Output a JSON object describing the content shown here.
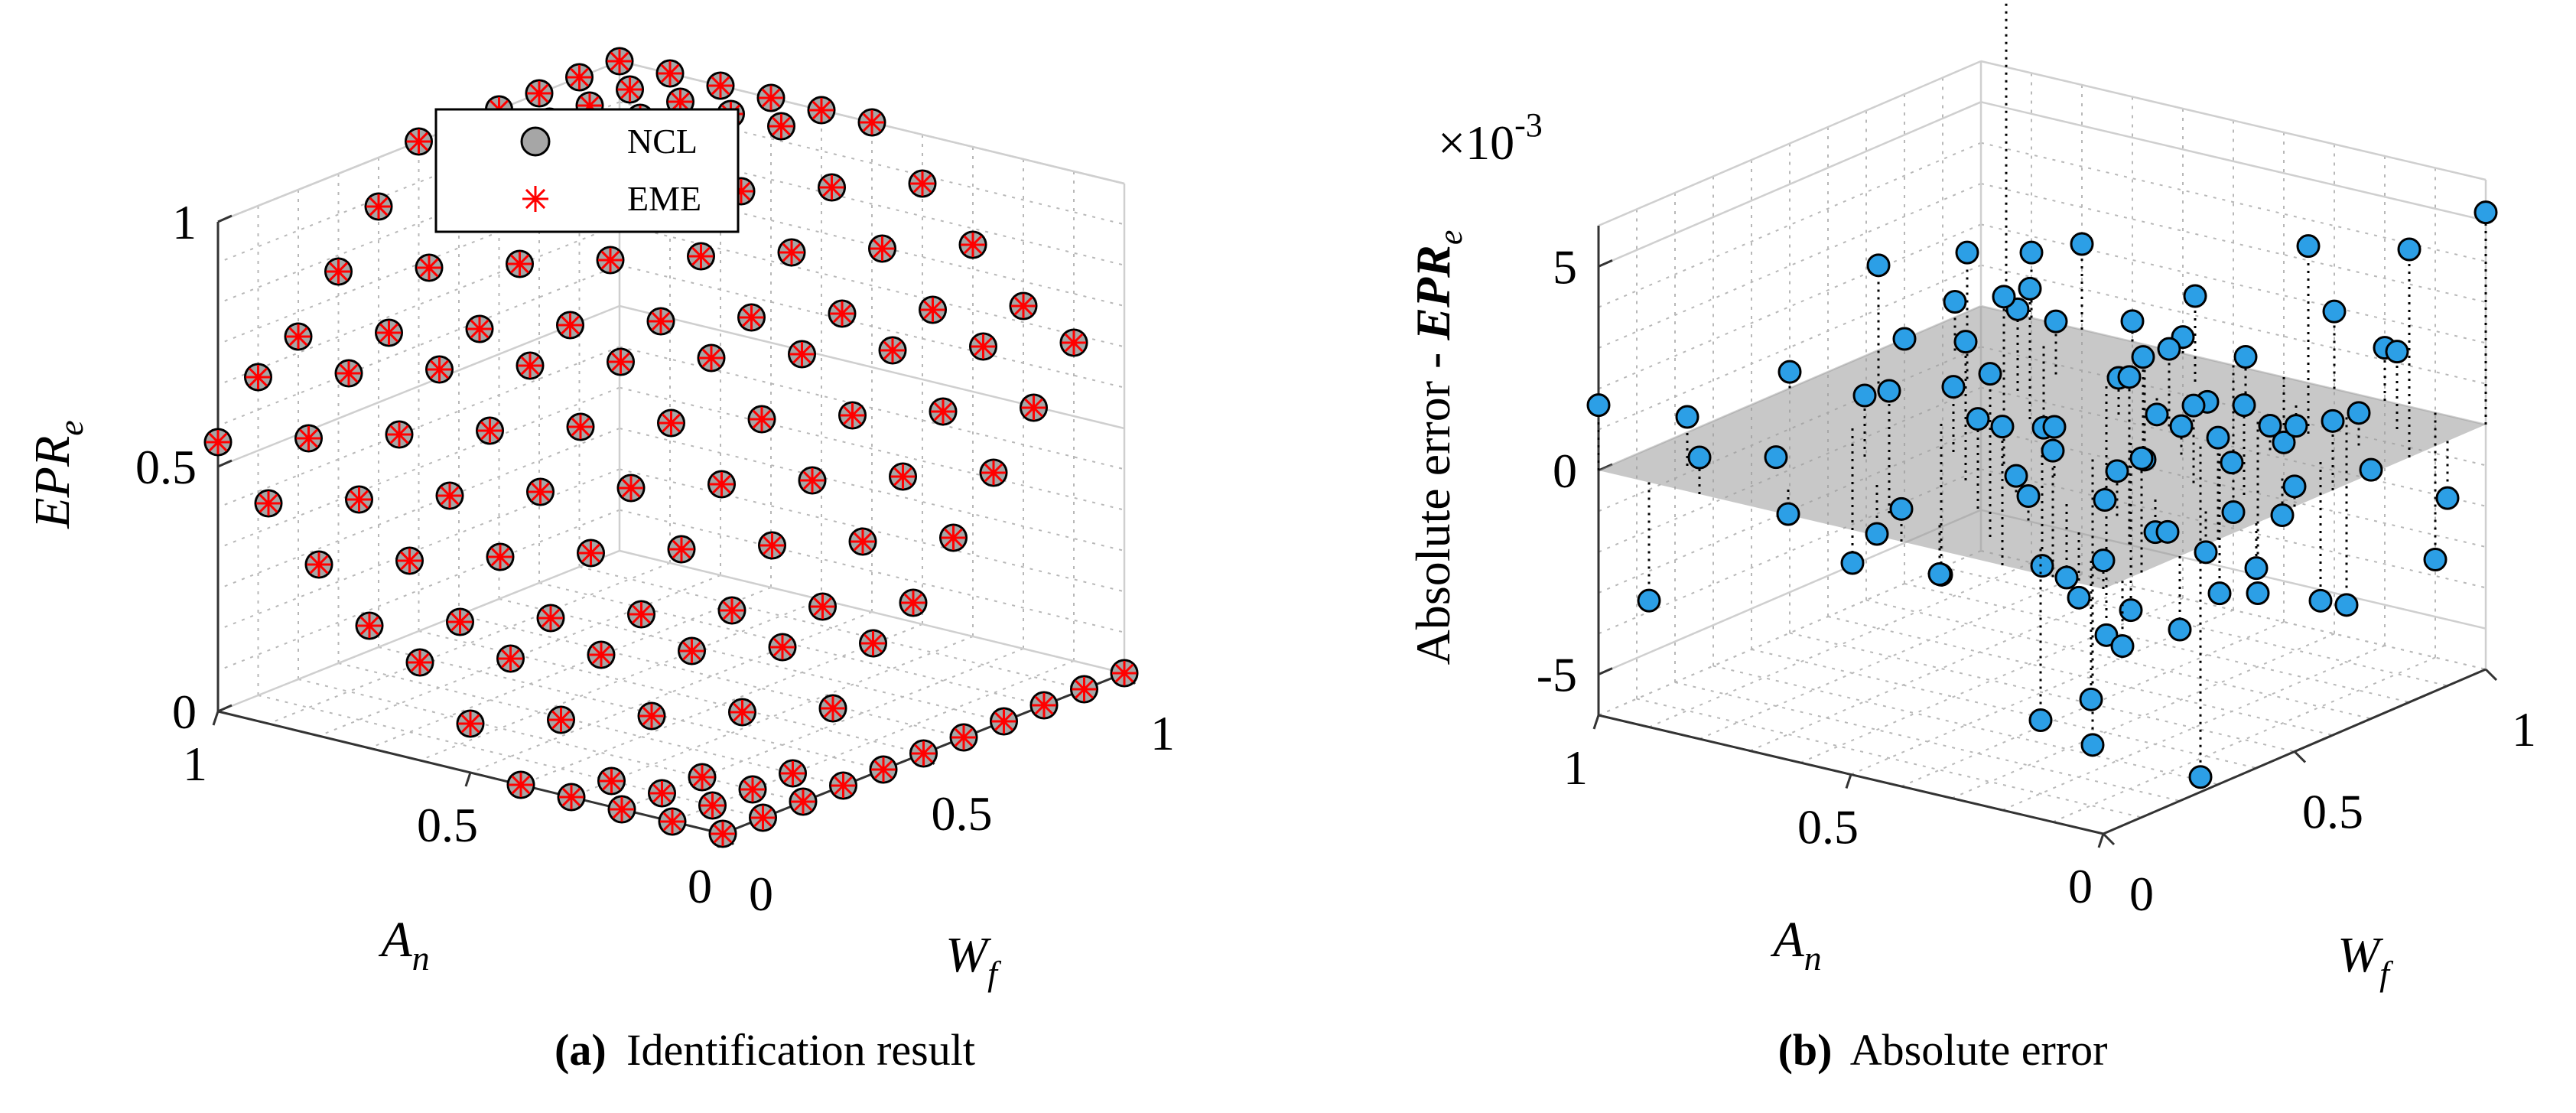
{
  "captions": {
    "a": {
      "label": "(a)",
      "text": "Identification result"
    },
    "b": {
      "label": "(b)",
      "text": "Absolute error"
    }
  },
  "colors": {
    "ncl_fill": "#a6a6a6",
    "eme": "#ff0000",
    "err_fill": "#2c9fe6",
    "plane": "#9a9a9a",
    "grid": "#b8b8b8",
    "axis": "#333333"
  },
  "chart_data": [
    {
      "type": "scatter3d",
      "xlabel_main": "W",
      "xlabel_sub": "f",
      "ylabel_main": "A",
      "ylabel_sub": "n",
      "zlabel_main": "EPR",
      "zlabel_sub": "e",
      "xlim": [
        0,
        1
      ],
      "ylim": [
        0,
        1
      ],
      "zlim": [
        0,
        1
      ],
      "xticks": [
        "0",
        "0.5",
        "1"
      ],
      "yticks": [
        "0",
        "0.5",
        "1"
      ],
      "zticks": [
        "0",
        "0.5",
        "1"
      ],
      "grid": true,
      "legend_position": "top",
      "series": [
        {
          "name": "NCL",
          "marker": "circle"
        },
        {
          "name": "EME",
          "marker": "asterisk"
        }
      ],
      "grid_points": 11,
      "surface_model": "EPR_e = min(1, max(0, 0.1*round((A_n + W_f)*10*0.6)/1))"
    },
    {
      "type": "scatter3d-stem",
      "xlabel_main": "W",
      "xlabel_sub": "f",
      "ylabel_main": "A",
      "ylabel_sub": "n",
      "zlabel_prefix": "Absolute error - ",
      "zlabel_main": "EPR",
      "zlabel_sub": "e",
      "exponent_label": "×10",
      "exponent_power": "-3",
      "xlim": [
        0,
        1
      ],
      "ylim": [
        0,
        1
      ],
      "zlim": [
        -6,
        6
      ],
      "xticks": [
        "0",
        "0.5",
        "1"
      ],
      "yticks": [
        "0",
        "0.5",
        "1"
      ],
      "zticks": [
        "-5",
        "0",
        "5"
      ],
      "grid": true,
      "points": [
        {
          "x": 0.0,
          "y": 1.0,
          "z": 1.6
        },
        {
          "x": 0.1,
          "y": 1.0,
          "z": -2.9
        },
        {
          "x": 0.1,
          "y": 0.9,
          "z": 1.2
        },
        {
          "x": 0.2,
          "y": 1.0,
          "z": 0.9
        },
        {
          "x": 0.2,
          "y": 0.8,
          "z": 0.1
        },
        {
          "x": 0.3,
          "y": 0.9,
          "z": -0.6
        },
        {
          "x": 0.3,
          "y": 0.7,
          "z": 1.5
        },
        {
          "x": 0.4,
          "y": 0.8,
          "z": -1.2
        },
        {
          "x": 0.4,
          "y": 0.6,
          "z": 1.6
        },
        {
          "x": 0.5,
          "y": 0.7,
          "z": 3.4
        },
        {
          "x": 0.5,
          "y": 0.5,
          "z": -2.9
        },
        {
          "x": 0.6,
          "y": 0.6,
          "z": 1.2
        },
        {
          "x": 0.6,
          "y": 0.4,
          "z": -4.1
        },
        {
          "x": 0.7,
          "y": 0.5,
          "z": 2.8
        },
        {
          "x": 0.7,
          "y": 0.3,
          "z": -3.8
        },
        {
          "x": 0.8,
          "y": 0.4,
          "z": 0.1
        },
        {
          "x": 0.8,
          "y": 0.2,
          "z": 4.6
        },
        {
          "x": 0.9,
          "y": 0.3,
          "z": -3.4
        },
        {
          "x": 0.9,
          "y": 0.1,
          "z": 1.9
        },
        {
          "x": 1.0,
          "y": 0.2,
          "z": 5.1
        },
        {
          "x": 1.0,
          "y": 0.0,
          "z": 5.2
        },
        {
          "x": 0.3,
          "y": 0.3,
          "z": 2.0
        },
        {
          "x": 0.5,
          "y": 0.2,
          "z": -0.4
        },
        {
          "x": 0.6,
          "y": 0.1,
          "z": 0.9
        },
        {
          "x": 0.7,
          "y": 0.0,
          "z": 1.9
        },
        {
          "x": 0.4,
          "y": 0.4,
          "z": 3.2
        },
        {
          "x": 0.2,
          "y": 0.6,
          "z": -3.3
        },
        {
          "x": 0.3,
          "y": 0.5,
          "z": -3.7
        },
        {
          "x": 0.4,
          "y": 0.2,
          "z": -6.1
        },
        {
          "x": 0.5,
          "y": 0.0,
          "z": -3.6
        },
        {
          "x": 0.6,
          "y": 0.3,
          "z": 1.9
        },
        {
          "x": 0.7,
          "y": 0.2,
          "z": -4.2
        },
        {
          "x": 0.8,
          "y": 0.1,
          "z": -4.6
        },
        {
          "x": 0.9,
          "y": 0.0,
          "z": -3.6
        },
        {
          "x": 0.1,
          "y": 0.4,
          "z": 2.9
        },
        {
          "x": 0.2,
          "y": 0.3,
          "z": 3.1
        },
        {
          "x": 0.3,
          "y": 0.2,
          "z": 1.3
        },
        {
          "x": 0.4,
          "y": 0.1,
          "z": -2.2
        },
        {
          "x": 0.5,
          "y": 0.1,
          "z": 2.1
        },
        {
          "x": 0.6,
          "y": 0.0,
          "z": -1.6
        },
        {
          "x": 0.8,
          "y": 0.3,
          "z": 0.6
        },
        {
          "x": 0.9,
          "y": 0.2,
          "z": 0.8
        },
        {
          "x": 1.0,
          "y": 0.1,
          "z": -1.4
        },
        {
          "x": 0.0,
          "y": 0.5,
          "z": 0.4
        },
        {
          "x": 0.1,
          "y": 0.2,
          "z": 1.2
        },
        {
          "x": 0.2,
          "y": 0.1,
          "z": -2.0
        },
        {
          "x": 0.3,
          "y": 0.0,
          "z": 0.5
        },
        {
          "x": 0.5,
          "y": 0.3,
          "z": 0.9
        },
        {
          "x": 0.6,
          "y": 0.2,
          "z": 0.2
        },
        {
          "x": 0.7,
          "y": 0.1,
          "z": -0.5
        },
        {
          "x": 0.8,
          "y": 0.0,
          "z": 1.3
        },
        {
          "x": 0.9,
          "y": 0.4,
          "z": -0.9
        },
        {
          "x": 1.0,
          "y": 0.3,
          "z": 0.1
        },
        {
          "x": 0.0,
          "y": 0.2,
          "z": 0.0
        },
        {
          "x": 0.1,
          "y": 0.0,
          "z": 1.6
        },
        {
          "x": 0.2,
          "y": 0.0,
          "z": 2.1
        },
        {
          "x": 0.4,
          "y": 0.0,
          "z": 0.4
        },
        {
          "x": 0.7,
          "y": 0.4,
          "z": 0.7
        },
        {
          "x": 0.8,
          "y": 0.5,
          "z": 1.9
        },
        {
          "x": 0.9,
          "y": 0.5,
          "z": 2.2
        },
        {
          "x": 1.0,
          "y": 0.4,
          "z": 1.7
        },
        {
          "x": 1.0,
          "y": 0.5,
          "z": 0.5
        },
        {
          "x": 0.7,
          "y": 0.6,
          "z": -0.3
        },
        {
          "x": 0.8,
          "y": 0.6,
          "z": -0.8
        },
        {
          "x": 0.9,
          "y": 0.6,
          "z": -1.0
        },
        {
          "x": 1.0,
          "y": 0.6,
          "z": -1.1
        },
        {
          "x": 0.6,
          "y": 0.7,
          "z": 0.4
        },
        {
          "x": 0.7,
          "y": 0.7,
          "z": -1.8
        },
        {
          "x": 0.8,
          "y": 0.7,
          "z": 1.1
        },
        {
          "x": 0.9,
          "y": 0.7,
          "z": -0.1
        },
        {
          "x": 1.0,
          "y": 0.7,
          "z": 2.5
        },
        {
          "x": 0.6,
          "y": 0.8,
          "z": 2.2
        },
        {
          "x": 0.7,
          "y": 0.8,
          "z": 0.6
        },
        {
          "x": 0.8,
          "y": 0.8,
          "z": -1.6
        },
        {
          "x": 0.9,
          "y": 0.8,
          "z": 4.1
        },
        {
          "x": 1.0,
          "y": 0.8,
          "z": -1.8
        },
        {
          "x": 0.5,
          "y": 0.9,
          "z": 3.0
        },
        {
          "x": 0.6,
          "y": 0.9,
          "z": -1.2
        },
        {
          "x": 0.7,
          "y": 0.9,
          "z": 4.0
        },
        {
          "x": 0.8,
          "y": 0.9,
          "z": -4.2
        },
        {
          "x": 0.9,
          "y": 0.9,
          "z": -3.4
        },
        {
          "x": 1.0,
          "y": 0.9,
          "z": 2.8
        },
        {
          "x": 0.6,
          "y": 1.0,
          "z": 0.8
        },
        {
          "x": 0.8,
          "y": 1.0,
          "z": 3.4
        },
        {
          "x": 0.9,
          "y": 1.0,
          "z": 3.1
        },
        {
          "x": 1.0,
          "y": 1.0,
          "z": 0.7
        },
        {
          "x": 1.0,
          "y": 0.95,
          "z": -1.6
        },
        {
          "x": 0.05,
          "y": 0.0,
          "z": 11.0
        },
        {
          "x": 0.5,
          "y": 0.6,
          "z": 4.1
        },
        {
          "x": 0.6,
          "y": 0.5,
          "z": -7.0
        },
        {
          "x": 0.7,
          "y": 0.35,
          "z": -8.1
        }
      ]
    }
  ]
}
